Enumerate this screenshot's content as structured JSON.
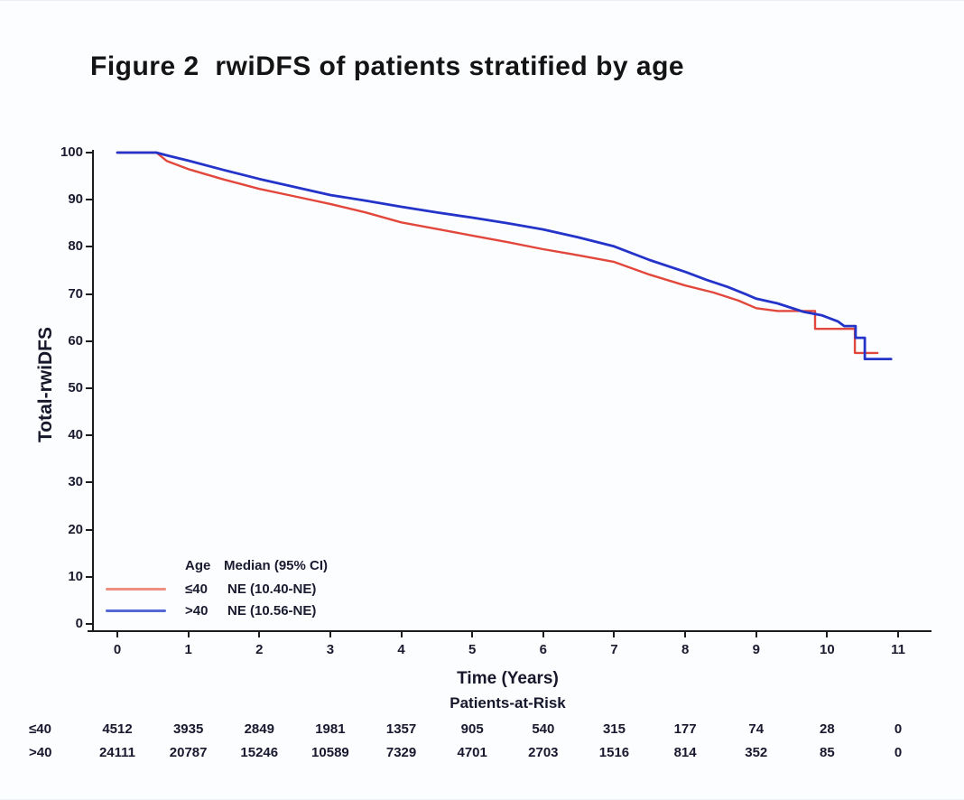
{
  "title": "Figure 2  rwiDFS of patients stratified by age",
  "colors": {
    "text": "#17172b",
    "axis": "#1c1c1c",
    "red_curve": "#e2473c",
    "blue_curve": "#2433c8"
  },
  "chart_data": {
    "type": "line",
    "subtype": "kaplan-meier-step",
    "title": "Figure 2  rwiDFS of patients stratified by age",
    "xlabel": "Time (Years)",
    "ylabel": "Total-rwiDFS",
    "xlim": [
      0,
      11
    ],
    "ylim": [
      0,
      100
    ],
    "x_ticks": [
      0,
      1,
      2,
      3,
      4,
      5,
      6,
      7,
      8,
      9,
      10,
      11
    ],
    "y_ticks": [
      0,
      10,
      20,
      30,
      40,
      50,
      60,
      70,
      80,
      90,
      100
    ],
    "grid": false,
    "legend": {
      "position": "inside-bottom-left",
      "col1_header": "Age",
      "col2_header": "Median (95% CI)",
      "entries": [
        {
          "label": "≤40",
          "median": "NE (10.40-NE)",
          "swatch_color": "#ef8e82"
        },
        {
          "label": ">40",
          "median": "NE (10.56-NE)",
          "swatch_color": "#5468d8"
        }
      ]
    },
    "series": [
      {
        "name": "≤40",
        "color": "#e2473c",
        "points": [
          [
            0,
            100
          ],
          [
            0.55,
            100
          ],
          [
            0.7,
            98.2
          ],
          [
            1,
            96.5
          ],
          [
            1.5,
            94.3
          ],
          [
            2,
            92.3
          ],
          [
            2.5,
            90.7
          ],
          [
            3,
            89.1
          ],
          [
            3.5,
            87.3
          ],
          [
            4,
            85.2
          ],
          [
            4.5,
            83.8
          ],
          [
            5,
            82.4
          ],
          [
            5.5,
            81
          ],
          [
            6,
            79.5
          ],
          [
            6.5,
            78.2
          ],
          [
            7,
            76.8
          ],
          [
            7.5,
            74.1
          ],
          [
            8,
            71.8
          ],
          [
            8.4,
            70.3
          ],
          [
            8.75,
            68.6
          ],
          [
            9,
            67
          ],
          [
            9.3,
            66.4
          ],
          [
            9.83,
            66.4
          ],
          [
            9.83,
            62.6
          ],
          [
            10.39,
            62.6
          ],
          [
            10.39,
            57.5
          ],
          [
            10.71,
            57.5
          ]
        ]
      },
      {
        "name": ">40",
        "color": "#2433c8",
        "points": [
          [
            0,
            100
          ],
          [
            0.55,
            100
          ],
          [
            0.7,
            99.4
          ],
          [
            1,
            98.3
          ],
          [
            1.5,
            96.3
          ],
          [
            2,
            94.4
          ],
          [
            2.5,
            92.7
          ],
          [
            3,
            91
          ],
          [
            3.5,
            89.8
          ],
          [
            4,
            88.5
          ],
          [
            4.5,
            87.3
          ],
          [
            5,
            86.2
          ],
          [
            5.5,
            85
          ],
          [
            6,
            83.7
          ],
          [
            6.5,
            82
          ],
          [
            7,
            80.1
          ],
          [
            7.5,
            77.2
          ],
          [
            8,
            74.7
          ],
          [
            8.3,
            73
          ],
          [
            8.6,
            71.5
          ],
          [
            8.86,
            69.9
          ],
          [
            9,
            69
          ],
          [
            9.3,
            68
          ],
          [
            9.67,
            66.2
          ],
          [
            9.92,
            65.5
          ],
          [
            10.15,
            64.2
          ],
          [
            10.24,
            63.2
          ],
          [
            10.4,
            63.2
          ],
          [
            10.4,
            60.7
          ],
          [
            10.53,
            60.7
          ],
          [
            10.53,
            56.2
          ],
          [
            10.9,
            56.2
          ]
        ]
      }
    ],
    "risk_table": {
      "title": "Patients-at-Risk",
      "time_points": [
        0,
        1,
        2,
        3,
        4,
        5,
        6,
        7,
        8,
        9,
        10,
        11
      ],
      "rows": [
        {
          "label": "≤40",
          "values": [
            "4512",
            "3935",
            "2849",
            "1981",
            "1357",
            "905",
            "540",
            "315",
            "177",
            "74",
            "28",
            "0"
          ]
        },
        {
          "label": ">40",
          "values": [
            "24111",
            "20787",
            "15246",
            "10589",
            "7329",
            "4701",
            "2703",
            "1516",
            "814",
            "352",
            "85",
            "0"
          ]
        }
      ]
    }
  }
}
